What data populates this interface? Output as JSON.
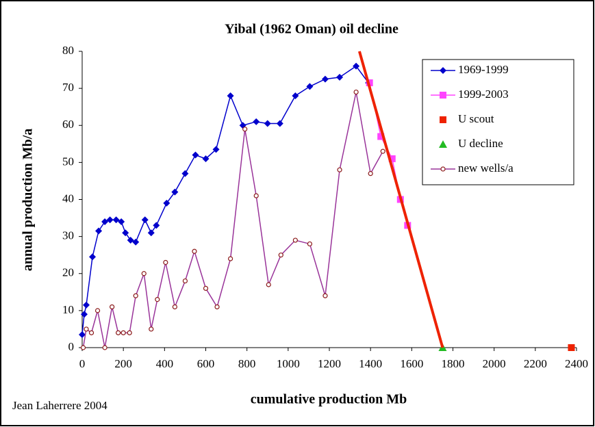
{
  "chart_data": {
    "type": "line",
    "title": "Yibal (1962 Oman) oil decline",
    "x_label": "cumulative production Mb",
    "y_label": "annual production Mb/a",
    "credit": "Jean Laherrere 2004",
    "xlim": [
      0,
      2400
    ],
    "xticks": [
      0,
      200,
      400,
      600,
      800,
      1000,
      1200,
      1400,
      1600,
      1800,
      2000,
      2200,
      2400
    ],
    "ylim": [
      0,
      80
    ],
    "yticks": [
      0,
      10,
      20,
      30,
      40,
      50,
      60,
      70,
      80
    ],
    "legend": "top-right",
    "series": [
      {
        "name": "1969-1999",
        "color": "#0000cc",
        "marker": "diamond",
        "line": true,
        "x": [
          0,
          10,
          20,
          50,
          80,
          110,
          135,
          165,
          190,
          210,
          235,
          260,
          305,
          335,
          360,
          410,
          450,
          500,
          550,
          600,
          650,
          720,
          780,
          845,
          900,
          960,
          1035,
          1105,
          1180,
          1250,
          1330,
          1390
        ],
        "values": [
          3.5,
          9,
          11.5,
          24.5,
          31.5,
          34,
          34.5,
          34.5,
          34,
          31,
          29,
          28.5,
          34.5,
          31,
          33,
          39,
          42,
          47,
          52,
          51,
          53.5,
          68,
          60,
          61,
          60.5,
          60.5,
          68,
          70.5,
          72.5,
          73,
          76,
          71.5
        ]
      },
      {
        "name": "1999-2003",
        "color": "#ff44ff",
        "marker": "square",
        "line": true,
        "x": [
          1395,
          1450,
          1505,
          1545,
          1580
        ],
        "values": [
          71.5,
          57,
          51,
          40,
          33
        ]
      },
      {
        "name": "U scout",
        "color": "#ee2200",
        "marker": "square",
        "line": false,
        "x": [
          2375
        ],
        "values": [
          0
        ]
      },
      {
        "name": "U decline",
        "color": "#22bb22",
        "marker": "triangle",
        "line": false,
        "x": [
          1750
        ],
        "values": [
          0
        ]
      },
      {
        "name": "new wells/a",
        "color": "#993399",
        "marker": "circle",
        "line": true,
        "x": [
          5,
          20,
          45,
          75,
          110,
          145,
          175,
          200,
          230,
          260,
          300,
          335,
          365,
          405,
          450,
          500,
          545,
          600,
          655,
          720,
          790,
          845,
          905,
          965,
          1035,
          1105,
          1180,
          1250,
          1330,
          1400,
          1460
        ],
        "values": [
          0,
          5,
          4,
          10,
          0,
          11,
          4,
          4,
          4,
          14,
          20,
          5,
          13,
          23,
          11,
          18,
          26,
          16,
          11,
          24,
          59,
          41,
          17,
          25,
          29,
          28,
          14,
          48,
          69,
          47,
          53
        ]
      }
    ],
    "trend_line": {
      "color": "#ee2200",
      "x": [
        1346,
        1750
      ],
      "values": [
        80,
        0
      ]
    }
  }
}
